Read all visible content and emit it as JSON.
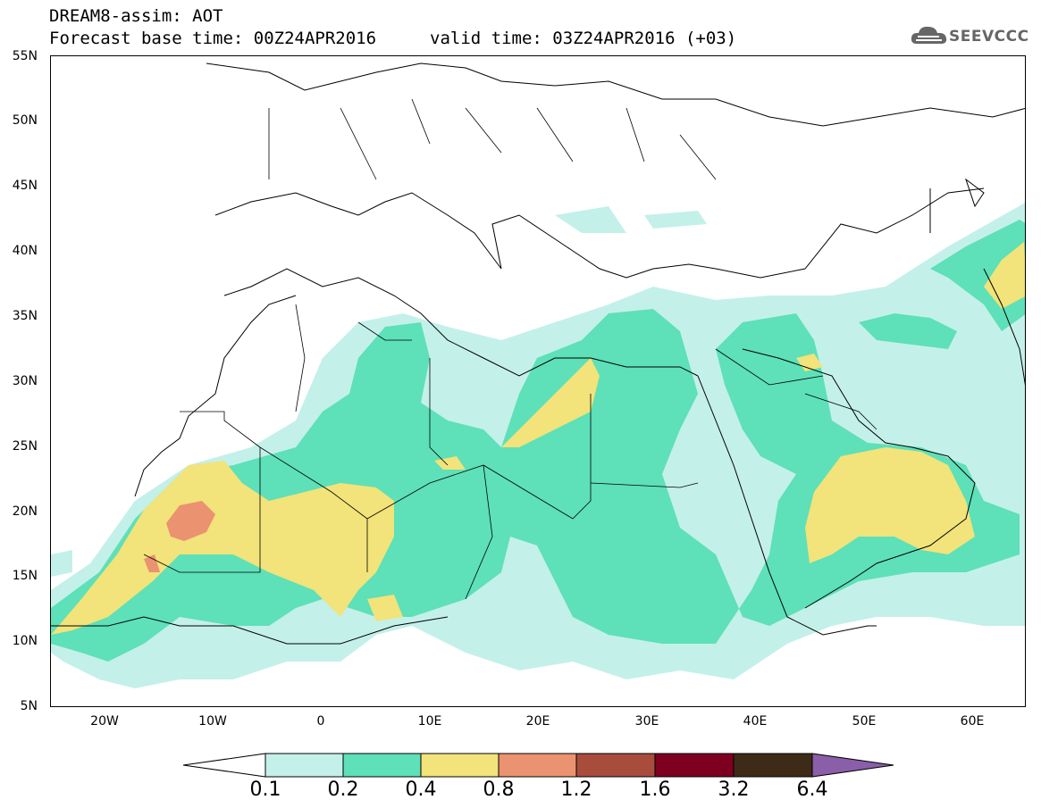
{
  "header": {
    "title_line1": "DREAM8-assim: AOT",
    "title_line2": "Forecast base time: 00Z24APR2016",
    "valid_time": "valid time: 03Z24APR2016 (+03)",
    "logo_text": "SEEVCCC",
    "logo_icon": "cloud-icon"
  },
  "map": {
    "projection": "lat-lon",
    "lon_range": [
      -25,
      65
    ],
    "lat_range": [
      5,
      55
    ],
    "y_ticks": [
      "55N",
      "50N",
      "45N",
      "40N",
      "35N",
      "30N",
      "25N",
      "20N",
      "15N",
      "10N",
      "5N"
    ],
    "x_ticks": [
      "20W",
      "10W",
      "0",
      "10E",
      "20E",
      "30E",
      "40E",
      "50E",
      "60E"
    ]
  },
  "colorbar": {
    "levels": [
      "0.1",
      "0.2",
      "0.4",
      "0.8",
      "1.2",
      "1.6",
      "3.2",
      "6.4"
    ],
    "colors": [
      "#c4f0ea",
      "#5ee0b8",
      "#f2e37a",
      "#eb9270",
      "#a84d3c",
      "#7d0021",
      "#3e2b17",
      "#8a5ea8"
    ]
  }
}
